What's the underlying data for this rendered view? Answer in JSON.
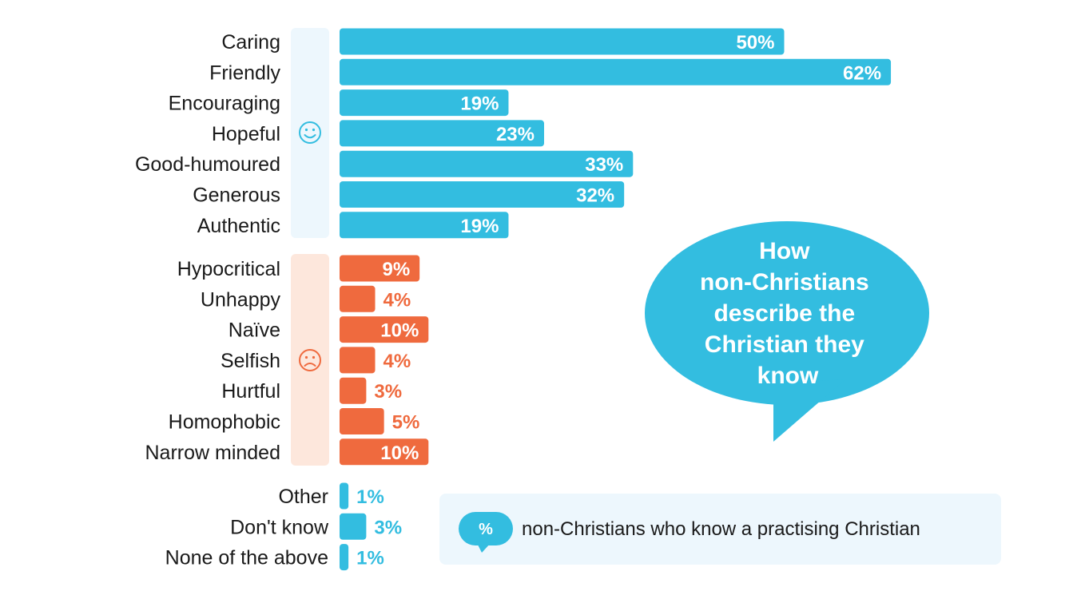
{
  "chart_data": {
    "type": "bar",
    "orientation": "horizontal",
    "title": "How non-Christians describe the Christian they know",
    "title_lines": [
      "How",
      "non-Christians",
      "describe the",
      "Christian they",
      "know"
    ],
    "legend": {
      "badge": "%",
      "text": "non-Christians who know a practising Christian"
    },
    "value_suffix": "%",
    "colors": {
      "positive": "#33bde0",
      "negative": "#ef6a3e",
      "other": "#33bde0",
      "positive_panel": "#edf7fd",
      "negative_panel": "#fde7dc",
      "legend_panel": "#edf7fd"
    },
    "groups": [
      {
        "name": "positive",
        "icon": "smiley-face-icon",
        "categories": [
          "Caring",
          "Friendly",
          "Encouraging",
          "Hopeful",
          "Good-humoured",
          "Generous",
          "Authentic"
        ],
        "values": [
          50,
          62,
          19,
          23,
          33,
          32,
          19
        ]
      },
      {
        "name": "negative",
        "icon": "frowning-face-icon",
        "categories": [
          "Hypocritical",
          "Unhappy",
          "Naïve",
          "Selfish",
          "Hurtful",
          "Homophobic",
          "Narrow minded"
        ],
        "values": [
          9,
          4,
          10,
          4,
          3,
          5,
          10
        ]
      },
      {
        "name": "other",
        "icon": "",
        "categories": [
          "Other",
          "Don't know",
          "None of the above"
        ],
        "values": [
          1,
          3,
          1
        ]
      }
    ]
  }
}
